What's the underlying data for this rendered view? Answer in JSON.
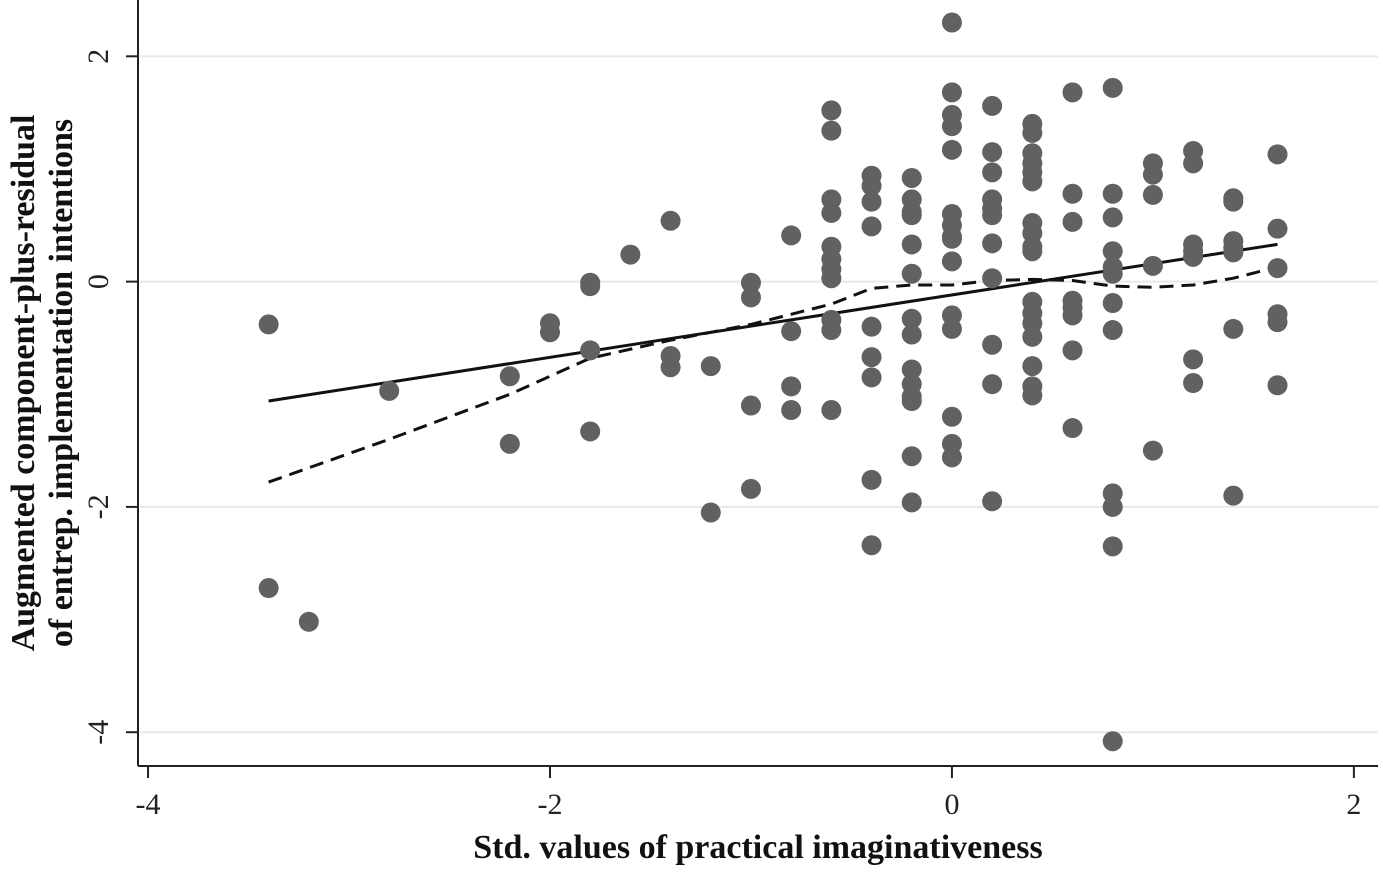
{
  "chart_data": {
    "type": "scatter",
    "xlabel": "Std. values of practical imaginativeness",
    "ylabel_lines": [
      "Augmented component-plus-residual",
      "of entrep. implementation intentions"
    ],
    "xlim": [
      -4.05,
      2.12
    ],
    "ylim": [
      -4.3,
      2.5
    ],
    "xticks": [
      -4,
      -2,
      0,
      2
    ],
    "yticks": [
      2,
      0,
      -2,
      -4
    ],
    "grid": "horizontal",
    "colors": {
      "points": "#616161",
      "lines": "#111111",
      "grid": "#e8e8e8",
      "axis": "#222222"
    },
    "points": [
      [
        -3.4,
        -0.38
      ],
      [
        -3.4,
        -2.72
      ],
      [
        -3.2,
        -3.02
      ],
      [
        -2.8,
        -0.97
      ],
      [
        -2.2,
        -0.84
      ],
      [
        -2.2,
        -1.44
      ],
      [
        -2.0,
        -0.37
      ],
      [
        -2.0,
        -0.45
      ],
      [
        -1.8,
        -0.01
      ],
      [
        -1.8,
        -0.04
      ],
      [
        -1.8,
        -0.61
      ],
      [
        -1.8,
        -1.33
      ],
      [
        -1.6,
        0.24
      ],
      [
        -1.4,
        0.54
      ],
      [
        -1.4,
        -0.66
      ],
      [
        -1.4,
        -0.76
      ],
      [
        -1.2,
        -0.75
      ],
      [
        -1.2,
        -2.05
      ],
      [
        -1.0,
        -0.01
      ],
      [
        -1.0,
        -0.14
      ],
      [
        -1.0,
        -1.1
      ],
      [
        -1.0,
        -1.84
      ],
      [
        -0.8,
        0.41
      ],
      [
        -0.8,
        -0.44
      ],
      [
        -0.8,
        -0.93
      ],
      [
        -0.8,
        -1.14
      ],
      [
        -0.6,
        1.52
      ],
      [
        -0.6,
        1.34
      ],
      [
        -0.6,
        0.73
      ],
      [
        -0.6,
        0.61
      ],
      [
        -0.6,
        0.31
      ],
      [
        -0.6,
        0.2
      ],
      [
        -0.6,
        0.11
      ],
      [
        -0.6,
        0.03
      ],
      [
        -0.6,
        -0.34
      ],
      [
        -0.6,
        -0.43
      ],
      [
        -0.6,
        -1.14
      ],
      [
        -0.4,
        0.94
      ],
      [
        -0.4,
        0.85
      ],
      [
        -0.4,
        0.71
      ],
      [
        -0.4,
        0.49
      ],
      [
        -0.4,
        -0.4
      ],
      [
        -0.4,
        -0.67
      ],
      [
        -0.4,
        -0.85
      ],
      [
        -0.4,
        -1.76
      ],
      [
        -0.4,
        -2.34
      ],
      [
        -0.2,
        0.92
      ],
      [
        -0.2,
        0.73
      ],
      [
        -0.2,
        0.62
      ],
      [
        -0.2,
        0.59
      ],
      [
        -0.2,
        0.33
      ],
      [
        -0.2,
        0.07
      ],
      [
        -0.2,
        -0.33
      ],
      [
        -0.2,
        -0.47
      ],
      [
        -0.2,
        -0.78
      ],
      [
        -0.2,
        -0.91
      ],
      [
        -0.2,
        -1.02
      ],
      [
        -0.2,
        -1.06
      ],
      [
        -0.2,
        -1.55
      ],
      [
        -0.2,
        -1.96
      ],
      [
        0.0,
        2.3
      ],
      [
        0.0,
        1.68
      ],
      [
        0.0,
        1.48
      ],
      [
        0.0,
        1.38
      ],
      [
        0.0,
        1.17
      ],
      [
        0.0,
        0.6
      ],
      [
        0.0,
        0.5
      ],
      [
        0.0,
        0.4
      ],
      [
        0.0,
        0.38
      ],
      [
        0.0,
        0.18
      ],
      [
        0.0,
        -0.3
      ],
      [
        0.0,
        -0.42
      ],
      [
        0.0,
        -1.2
      ],
      [
        0.0,
        -1.44
      ],
      [
        0.0,
        -1.56
      ],
      [
        0.2,
        1.56
      ],
      [
        0.2,
        1.15
      ],
      [
        0.2,
        0.97
      ],
      [
        0.2,
        0.73
      ],
      [
        0.2,
        0.65
      ],
      [
        0.2,
        0.59
      ],
      [
        0.2,
        0.34
      ],
      [
        0.2,
        0.03
      ],
      [
        0.2,
        -0.56
      ],
      [
        0.2,
        -0.91
      ],
      [
        0.2,
        -1.95
      ],
      [
        0.4,
        1.4
      ],
      [
        0.4,
        1.32
      ],
      [
        0.4,
        1.14
      ],
      [
        0.4,
        1.05
      ],
      [
        0.4,
        0.97
      ],
      [
        0.4,
        0.89
      ],
      [
        0.4,
        0.52
      ],
      [
        0.4,
        0.43
      ],
      [
        0.4,
        0.31
      ],
      [
        0.4,
        0.27
      ],
      [
        0.4,
        -0.18
      ],
      [
        0.4,
        -0.28
      ],
      [
        0.4,
        -0.37
      ],
      [
        0.4,
        -0.49
      ],
      [
        0.4,
        -0.75
      ],
      [
        0.4,
        -0.93
      ],
      [
        0.4,
        -1.01
      ],
      [
        0.6,
        1.68
      ],
      [
        0.6,
        0.78
      ],
      [
        0.6,
        0.53
      ],
      [
        0.6,
        -0.17
      ],
      [
        0.6,
        -0.23
      ],
      [
        0.6,
        -0.3
      ],
      [
        0.6,
        -0.61
      ],
      [
        0.6,
        -1.3
      ],
      [
        0.8,
        1.72
      ],
      [
        0.8,
        0.78
      ],
      [
        0.8,
        0.57
      ],
      [
        0.8,
        0.27
      ],
      [
        0.8,
        0.13
      ],
      [
        0.8,
        0.07
      ],
      [
        0.8,
        -0.19
      ],
      [
        0.8,
        -0.43
      ],
      [
        0.8,
        -1.88
      ],
      [
        0.8,
        -2.0
      ],
      [
        0.8,
        -2.35
      ],
      [
        0.8,
        -4.08
      ],
      [
        1.0,
        1.05
      ],
      [
        1.0,
        0.95
      ],
      [
        1.0,
        0.77
      ],
      [
        1.0,
        0.14
      ],
      [
        1.0,
        -1.5
      ],
      [
        1.2,
        1.16
      ],
      [
        1.2,
        1.05
      ],
      [
        1.2,
        0.33
      ],
      [
        1.2,
        0.27
      ],
      [
        1.2,
        0.22
      ],
      [
        1.2,
        -0.69
      ],
      [
        1.2,
        -0.9
      ],
      [
        1.4,
        0.74
      ],
      [
        1.4,
        0.71
      ],
      [
        1.4,
        0.36
      ],
      [
        1.4,
        0.3
      ],
      [
        1.4,
        0.26
      ],
      [
        1.4,
        -0.42
      ],
      [
        1.4,
        -1.9
      ],
      [
        1.62,
        1.13
      ],
      [
        1.62,
        0.47
      ],
      [
        1.62,
        0.12
      ],
      [
        1.62,
        -0.29
      ],
      [
        1.62,
        -0.36
      ],
      [
        1.62,
        -0.92
      ]
    ],
    "series": [
      {
        "style": "solid",
        "points": [
          [
            -3.4,
            -1.06
          ],
          [
            1.62,
            0.33
          ]
        ]
      },
      {
        "style": "dashed",
        "points": [
          [
            -3.4,
            -1.78
          ],
          [
            -2.8,
            -1.4
          ],
          [
            -2.2,
            -1.0
          ],
          [
            -1.8,
            -0.68
          ],
          [
            -1.4,
            -0.52
          ],
          [
            -1.0,
            -0.38
          ],
          [
            -0.6,
            -0.2
          ],
          [
            -0.4,
            -0.06
          ],
          [
            -0.2,
            -0.03
          ],
          [
            0.0,
            -0.03
          ],
          [
            0.2,
            0.01
          ],
          [
            0.4,
            0.02
          ],
          [
            0.6,
            0.01
          ],
          [
            0.8,
            -0.04
          ],
          [
            1.0,
            -0.05
          ],
          [
            1.2,
            -0.03
          ],
          [
            1.4,
            0.03
          ],
          [
            1.62,
            0.13
          ]
        ]
      }
    ]
  }
}
